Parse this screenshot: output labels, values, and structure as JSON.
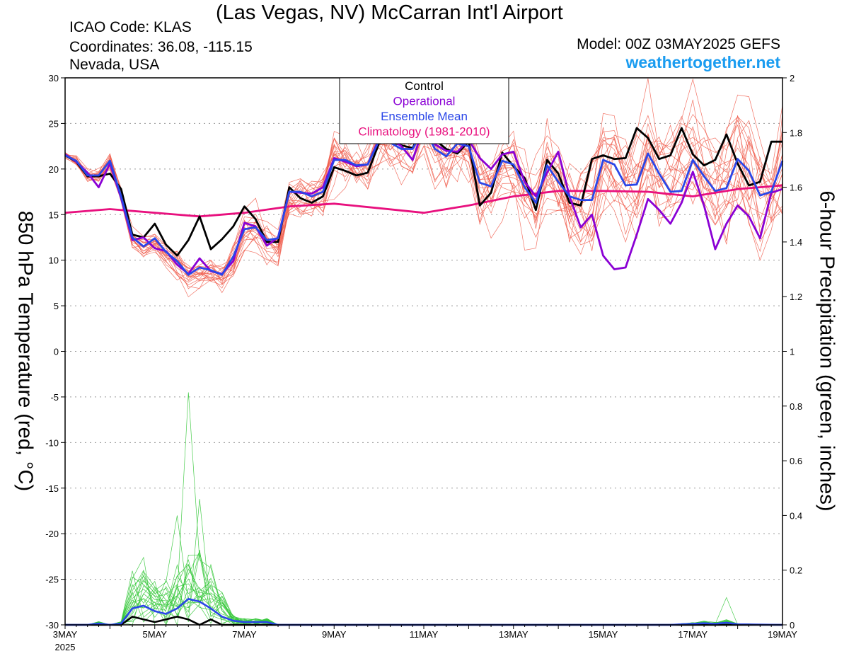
{
  "header": {
    "title": "(Las Vegas, NV) McCarran Int'l Airport",
    "icao": "ICAO Code: KLAS",
    "coordinates": "Coordinates: 36.08, -115.15",
    "region": "Nevada, USA",
    "model": "Model: 00Z 03MAY2025 GEFS",
    "site": "weathertogether.net"
  },
  "chart_data": {
    "type": "line",
    "ylabel_left": "850 hPa Temperature (red, °C)",
    "ylabel_right": "6-hour Precipitation (green, inches)",
    "ylim_left": [
      -30,
      30
    ],
    "ylim_right": [
      0,
      2
    ],
    "xlim_days": [
      3,
      19
    ],
    "grid": "horizontal dotted",
    "legend_position": "top-center",
    "x_ticks": [
      {
        "day": 3,
        "label": "3MAY"
      },
      {
        "day": 5,
        "label": "5MAY"
      },
      {
        "day": 7,
        "label": "7MAY"
      },
      {
        "day": 9,
        "label": "9MAY"
      },
      {
        "day": 11,
        "label": "11MAY"
      },
      {
        "day": 13,
        "label": "13MAY"
      },
      {
        "day": 15,
        "label": "15MAY"
      },
      {
        "day": 17,
        "label": "17MAY"
      },
      {
        "day": 19,
        "label": "19MAY"
      }
    ],
    "x_sublabel": "2025",
    "y_ticks_left": [
      30,
      25,
      20,
      15,
      10,
      5,
      0,
      -5,
      -10,
      -15,
      -20,
      -25,
      -30
    ],
    "y_ticks_right": [
      2,
      1.8,
      1.6,
      1.4,
      1.2,
      1,
      0.8,
      0.6,
      0.4,
      0.2,
      0
    ],
    "legend": [
      {
        "label": "Control",
        "color": "#000000"
      },
      {
        "label": "Operational",
        "color": "#8a00d4"
      },
      {
        "label": "Ensemble Mean",
        "color": "#2a46e8"
      },
      {
        "label": "Climatology (1981-2010)",
        "color": "#e8107e"
      }
    ],
    "series": [
      {
        "name": "Climatology (1981-2010)",
        "axis": "left",
        "color": "#e8107e",
        "x": [
          3,
          4,
          5,
          6,
          7,
          8,
          9,
          10,
          11,
          12,
          13,
          14,
          15,
          16,
          17,
          18,
          19
        ],
        "y": [
          15.2,
          15.6,
          15.2,
          14.8,
          15.2,
          15.9,
          16.2,
          15.7,
          15.2,
          16.0,
          17.0,
          17.6,
          17.6,
          17.5,
          17.0,
          17.8,
          18.2
        ]
      },
      {
        "name": "Control",
        "axis": "left",
        "color": "#000000",
        "x": [
          3,
          3.25,
          3.5,
          3.75,
          4,
          4.25,
          4.5,
          4.75,
          5,
          5.25,
          5.5,
          5.75,
          6,
          6.25,
          6.5,
          6.75,
          7,
          7.25,
          7.5,
          7.75,
          8,
          8.25,
          8.5,
          8.75,
          9,
          9.25,
          9.5,
          9.75,
          10,
          10.25,
          10.5,
          10.75,
          11,
          11.25,
          11.5,
          11.75,
          12,
          12.25,
          12.5,
          12.75,
          13,
          13.25,
          13.5,
          13.75,
          14,
          14.25,
          14.5,
          14.75,
          15,
          15.25,
          15.5,
          15.75,
          16,
          16.25,
          16.5,
          16.75,
          17,
          17.25,
          17.5,
          17.75,
          18,
          18.25,
          18.5,
          18.75,
          19
        ],
        "y": [
          21.5,
          20.8,
          19.2,
          19.2,
          19.5,
          17.8,
          12.8,
          12.5,
          14.0,
          11.7,
          10.5,
          12.2,
          14.8,
          11.2,
          12.3,
          13.7,
          15.9,
          14.5,
          12.0,
          12.0,
          18.0,
          16.8,
          16.3,
          17.0,
          20.2,
          19.8,
          19.3,
          19.6,
          22.8,
          23.0,
          22.6,
          22.3,
          24.8,
          23.2,
          22.2,
          21.7,
          23.0,
          16.0,
          17.4,
          21.8,
          20.3,
          19.0,
          15.5,
          21.0,
          19.5,
          16.3,
          16.0,
          21.1,
          21.5,
          21.1,
          21.2,
          24.5,
          23.4,
          21.1,
          21.5,
          24.5,
          21.6,
          20.4,
          21.0,
          23.8,
          20.6,
          18.2,
          18.6,
          23.0,
          23.0
        ]
      },
      {
        "name": "Operational",
        "axis": "left",
        "color": "#8a00d4",
        "x": [
          3,
          3.25,
          3.5,
          3.75,
          4,
          4.25,
          4.5,
          4.75,
          5,
          5.25,
          5.5,
          5.75,
          6,
          6.25,
          6.5,
          6.75,
          7,
          7.25,
          7.5,
          7.75,
          8,
          8.25,
          8.5,
          8.75,
          9,
          9.25,
          9.5,
          9.75,
          10,
          10.25,
          10.5,
          10.75,
          11,
          11.25,
          11.5,
          11.75,
          12,
          12.25,
          12.5,
          12.75,
          13,
          13.25,
          13.5,
          13.75,
          14,
          14.25,
          14.5,
          14.75,
          15,
          15.25,
          15.5,
          15.75,
          16,
          16.25,
          16.5,
          16.75,
          17,
          17.25,
          17.5,
          17.75,
          18,
          18.25,
          18.5,
          18.75,
          19
        ],
        "y": [
          21.6,
          20.8,
          19.6,
          18.0,
          20.6,
          16.8,
          12.2,
          12.5,
          11.3,
          11.0,
          9.5,
          8.5,
          10.2,
          8.8,
          8.5,
          9.9,
          14.1,
          13.7,
          11.6,
          12.5,
          17.5,
          17.4,
          17.3,
          18.0,
          21.2,
          20.8,
          20.3,
          20.5,
          23.3,
          23.3,
          22.5,
          21.0,
          24.6,
          22.7,
          22.0,
          21.9,
          23.2,
          21.2,
          20.0,
          21.6,
          21.9,
          18.6,
          17.0,
          19.6,
          21.9,
          17.0,
          13.6,
          15.0,
          10.5,
          9.0,
          9.2,
          12.8,
          16.7,
          15.5,
          14.0,
          16.3,
          19.7,
          16.0,
          11.2,
          14.0,
          16.0,
          14.8,
          12.4,
          17.4,
          17.8
        ]
      },
      {
        "name": "Ensemble Mean",
        "axis": "left",
        "color": "#2a46e8",
        "x": [
          3,
          3.25,
          3.5,
          3.75,
          4,
          4.25,
          4.5,
          4.75,
          5,
          5.25,
          5.5,
          5.75,
          6,
          6.25,
          6.5,
          6.75,
          7,
          7.25,
          7.5,
          7.75,
          8,
          8.25,
          8.5,
          8.75,
          9,
          9.25,
          9.5,
          9.75,
          10,
          10.25,
          10.5,
          10.75,
          11,
          11.25,
          11.5,
          11.75,
          12,
          12.25,
          12.5,
          12.75,
          13,
          13.25,
          13.5,
          13.75,
          14,
          14.25,
          14.5,
          14.75,
          15,
          15.25,
          15.5,
          15.75,
          16,
          16.25,
          16.5,
          16.75,
          17,
          17.25,
          17.5,
          17.75,
          18,
          18.25,
          18.5,
          18.75,
          19
        ],
        "y": [
          21.5,
          20.9,
          19.3,
          19.3,
          20.9,
          17.0,
          12.5,
          11.5,
          12.4,
          10.9,
          9.9,
          8.4,
          9.2,
          8.9,
          8.4,
          10.4,
          13.4,
          13.6,
          12.2,
          12.4,
          17.5,
          17.5,
          17.0,
          17.5,
          21.0,
          21.0,
          20.4,
          20.5,
          23.1,
          22.9,
          22.2,
          22.2,
          24.5,
          22.2,
          21.4,
          22.8,
          22.5,
          18.5,
          18.1,
          20.9,
          20.5,
          18.0,
          16.3,
          20.4,
          18.6,
          17.0,
          16.6,
          16.6,
          21.0,
          20.5,
          18.2,
          18.3,
          21.7,
          19.5,
          17.5,
          17.6,
          21.0,
          19.2,
          17.6,
          17.9,
          21.1,
          19.8,
          17.1,
          17.5,
          20.9
        ]
      }
    ],
    "precip_series": [
      {
        "name": "Control",
        "axis": "right",
        "color": "#000000",
        "x": [
          3,
          3.5,
          4,
          4.25,
          4.5,
          4.75,
          5,
          5.25,
          5.5,
          5.75,
          6,
          6.25,
          6.5,
          6.75,
          7,
          8,
          10,
          12,
          14,
          16,
          18,
          19
        ],
        "y": [
          0,
          0,
          0,
          0.0,
          0.03,
          0.02,
          0.01,
          0.02,
          0.03,
          0.02,
          0.0,
          0.02,
          0.0,
          0.0,
          0.0,
          0,
          0,
          0,
          0,
          0,
          0,
          0
        ]
      },
      {
        "name": "Ensemble Mean",
        "axis": "right",
        "color": "#2a46e8",
        "x": [
          3,
          3.5,
          3.75,
          4,
          4.25,
          4.5,
          4.75,
          5,
          5.25,
          5.5,
          5.75,
          6,
          6.25,
          6.5,
          6.75,
          7,
          7.25,
          7.5,
          7.75,
          8,
          10,
          12,
          14,
          16,
          16.5,
          16.75,
          17,
          17.25,
          17.5,
          17.75,
          18,
          19
        ],
        "y": [
          0,
          0,
          0.005,
          0,
          0.005,
          0.06,
          0.07,
          0.05,
          0.04,
          0.06,
          0.095,
          0.085,
          0.06,
          0.03,
          0.015,
          0.01,
          0.01,
          0.01,
          0.0,
          0,
          0,
          0,
          0,
          0,
          0,
          0.002,
          0.004,
          0.006,
          0.004,
          0.008,
          0.002,
          0
        ]
      }
    ]
  }
}
